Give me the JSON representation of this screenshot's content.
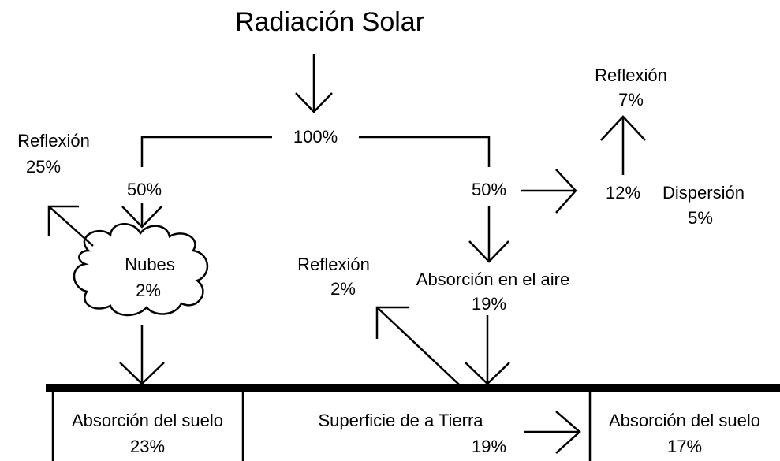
{
  "title": "Radiación Solar",
  "top": {
    "total": "100%",
    "left_split": "50%",
    "right_split": "50%"
  },
  "clouds": {
    "reflection_label": "Reflexión",
    "reflection_value": "25%",
    "label": "Nubes",
    "value": "2%"
  },
  "air": {
    "scatter_value": "12%",
    "upper_reflection_label": "Reflexión",
    "upper_reflection_value": "7%",
    "dispersion_label": "Dispersión",
    "dispersion_value": "5%",
    "absorption_label": "Absorción en el aire",
    "absorption_value": "19%"
  },
  "surface": {
    "reflection_label": "Reflexión",
    "reflection_value": "2%",
    "left_label": "Absorción del suelo",
    "left_value": "23%",
    "middle_label": "Superficie de a Tierra",
    "middle_value": "19%",
    "right_label": "Absorción del suelo",
    "right_value": "17%"
  }
}
